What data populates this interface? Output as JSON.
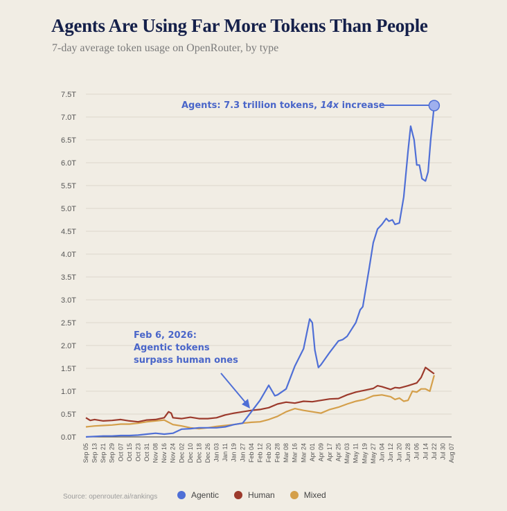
{
  "header": {
    "title": "Agents Are Using Far More Tokens Than People",
    "subtitle": "7-day average token usage on OpenRouter, by type"
  },
  "source": "Source: openrouter.ai/rankings",
  "legend": [
    {
      "label": "Agentic",
      "color": "#4f6fd6"
    },
    {
      "label": "Human",
      "color": "#9c3a2c"
    },
    {
      "label": "Mixed",
      "color": "#d49f4a"
    }
  ],
  "annotations": {
    "agents_prefix": "Agents: 7.3 trillion tokens, ",
    "agents_multiplier": "14x",
    "agents_suffix": " increase",
    "crossover_line1": "Feb 6, 2026:",
    "crossover_line2": "Agentic tokens",
    "crossover_line3": "surpass human ones"
  },
  "chart_data": {
    "type": "line",
    "title": "Agents Are Using Far More Tokens Than People",
    "subtitle": "7-day average token usage on OpenRouter, by type",
    "xlabel": "",
    "ylabel": "",
    "ylim": [
      0,
      7.5
    ],
    "yunit": "T",
    "yticks": [
      "0.0T",
      "0.5T",
      "1.0T",
      "1.5T",
      "2.0T",
      "2.5T",
      "3.0T",
      "3.5T",
      "4.0T",
      "4.5T",
      "5.0T",
      "5.5T",
      "6.0T",
      "6.5T",
      "7.0T",
      "7.5T"
    ],
    "xticks": [
      "Sep 05",
      "Sep 13",
      "Sep 21",
      "Sep 29",
      "Oct 07",
      "Oct 15",
      "Oct 23",
      "Oct 31",
      "Nov 08",
      "Nov 16",
      "Nov 24",
      "Dec 02",
      "Dec 10",
      "Dec 18",
      "Dec 26",
      "Jan 03",
      "Jan 11",
      "Jan 19",
      "Jan 27",
      "Feb 04",
      "Feb 12",
      "Feb 20",
      "Feb 28",
      "Mar 08",
      "Mar 16",
      "Mar 24",
      "Apr 01",
      "Apr 09",
      "Apr 17",
      "Apr 25",
      "May 03",
      "May 11",
      "May 19",
      "May 27",
      "Jun 04",
      "Jun 12",
      "Jun 20",
      "Jun 28",
      "Jul 06",
      "Jul 14",
      "Jul 22",
      "Jul 30",
      "Aug 07"
    ],
    "grid": true,
    "legend_position": "bottom",
    "series": [
      {
        "name": "Agentic",
        "color": "#4f6fd6",
        "points": [
          [
            0,
            0.0
          ],
          [
            1,
            0.01
          ],
          [
            2,
            0.02
          ],
          [
            3,
            0.02
          ],
          [
            4,
            0.03
          ],
          [
            5,
            0.03
          ],
          [
            6,
            0.04
          ],
          [
            7,
            0.06
          ],
          [
            8,
            0.08
          ],
          [
            9,
            0.06
          ],
          [
            10,
            0.08
          ],
          [
            11,
            0.17
          ],
          [
            12,
            0.18
          ],
          [
            13,
            0.2
          ],
          [
            14,
            0.2
          ],
          [
            15,
            0.2
          ],
          [
            16,
            0.22
          ],
          [
            17,
            0.27
          ],
          [
            18,
            0.3
          ],
          [
            19,
            0.55
          ],
          [
            20,
            0.8
          ],
          [
            21,
            1.13
          ],
          [
            21.7,
            0.9
          ],
          [
            22,
            0.92
          ],
          [
            23,
            1.05
          ],
          [
            24,
            1.55
          ],
          [
            25,
            1.93
          ],
          [
            25.7,
            2.58
          ],
          [
            26,
            2.5
          ],
          [
            26.3,
            1.9
          ],
          [
            26.7,
            1.52
          ],
          [
            27,
            1.58
          ],
          [
            28,
            1.85
          ],
          [
            29,
            2.1
          ],
          [
            29.5,
            2.13
          ],
          [
            30,
            2.2
          ],
          [
            31,
            2.5
          ],
          [
            31.5,
            2.78
          ],
          [
            31.8,
            2.85
          ],
          [
            32.5,
            3.65
          ],
          [
            33,
            4.25
          ],
          [
            33.5,
            4.55
          ],
          [
            34,
            4.65
          ],
          [
            34.5,
            4.78
          ],
          [
            34.8,
            4.72
          ],
          [
            35.2,
            4.75
          ],
          [
            35.5,
            4.65
          ],
          [
            36,
            4.68
          ],
          [
            36.5,
            5.25
          ],
          [
            37,
            6.25
          ],
          [
            37.3,
            6.8
          ],
          [
            37.7,
            6.5
          ],
          [
            38,
            5.95
          ],
          [
            38.3,
            5.95
          ],
          [
            38.6,
            5.65
          ],
          [
            39,
            5.6
          ],
          [
            39.3,
            5.8
          ],
          [
            39.6,
            6.5
          ],
          [
            40,
            7.25
          ]
        ]
      },
      {
        "name": "Human",
        "color": "#9c3a2c",
        "points": [
          [
            0,
            0.42
          ],
          [
            0.5,
            0.36
          ],
          [
            1,
            0.38
          ],
          [
            2,
            0.35
          ],
          [
            3,
            0.36
          ],
          [
            4,
            0.38
          ],
          [
            5,
            0.35
          ],
          [
            6,
            0.33
          ],
          [
            7,
            0.37
          ],
          [
            8,
            0.38
          ],
          [
            8.5,
            0.4
          ],
          [
            9,
            0.42
          ],
          [
            9.5,
            0.55
          ],
          [
            9.8,
            0.52
          ],
          [
            10,
            0.42
          ],
          [
            11,
            0.4
          ],
          [
            12,
            0.43
          ],
          [
            13,
            0.4
          ],
          [
            14,
            0.4
          ],
          [
            15,
            0.42
          ],
          [
            16,
            0.48
          ],
          [
            17,
            0.52
          ],
          [
            18,
            0.55
          ],
          [
            19,
            0.58
          ],
          [
            20,
            0.6
          ],
          [
            21,
            0.64
          ],
          [
            22,
            0.72
          ],
          [
            23,
            0.76
          ],
          [
            24,
            0.74
          ],
          [
            25,
            0.78
          ],
          [
            26,
            0.77
          ],
          [
            27,
            0.8
          ],
          [
            28,
            0.83
          ],
          [
            29,
            0.84
          ],
          [
            30,
            0.92
          ],
          [
            31,
            0.98
          ],
          [
            32,
            1.02
          ],
          [
            33,
            1.06
          ],
          [
            33.5,
            1.12
          ],
          [
            34,
            1.1
          ],
          [
            35,
            1.04
          ],
          [
            35.5,
            1.08
          ],
          [
            36,
            1.07
          ],
          [
            37,
            1.12
          ],
          [
            37.5,
            1.15
          ],
          [
            38,
            1.18
          ],
          [
            38.5,
            1.3
          ],
          [
            39,
            1.52
          ],
          [
            39.5,
            1.45
          ],
          [
            40,
            1.38
          ]
        ]
      },
      {
        "name": "Mixed",
        "color": "#d49f4a",
        "points": [
          [
            0,
            0.22
          ],
          [
            1,
            0.24
          ],
          [
            2,
            0.25
          ],
          [
            3,
            0.26
          ],
          [
            4,
            0.28
          ],
          [
            5,
            0.28
          ],
          [
            6,
            0.3
          ],
          [
            7,
            0.33
          ],
          [
            8,
            0.35
          ],
          [
            9,
            0.37
          ],
          [
            10,
            0.27
          ],
          [
            11,
            0.24
          ],
          [
            12,
            0.2
          ],
          [
            13,
            0.18
          ],
          [
            14,
            0.2
          ],
          [
            15,
            0.23
          ],
          [
            16,
            0.25
          ],
          [
            17,
            0.27
          ],
          [
            18,
            0.3
          ],
          [
            19,
            0.32
          ],
          [
            20,
            0.33
          ],
          [
            21,
            0.38
          ],
          [
            22,
            0.45
          ],
          [
            23,
            0.55
          ],
          [
            24,
            0.62
          ],
          [
            25,
            0.58
          ],
          [
            26,
            0.55
          ],
          [
            27,
            0.52
          ],
          [
            28,
            0.6
          ],
          [
            29,
            0.65
          ],
          [
            30,
            0.72
          ],
          [
            31,
            0.78
          ],
          [
            32,
            0.82
          ],
          [
            33,
            0.9
          ],
          [
            34,
            0.92
          ],
          [
            35,
            0.88
          ],
          [
            35.5,
            0.82
          ],
          [
            36,
            0.85
          ],
          [
            36.5,
            0.78
          ],
          [
            37,
            0.8
          ],
          [
            37.5,
            1.0
          ],
          [
            38,
            0.98
          ],
          [
            38.5,
            1.05
          ],
          [
            39,
            1.05
          ],
          [
            39.5,
            1.0
          ],
          [
            40,
            1.35
          ]
        ]
      }
    ]
  }
}
